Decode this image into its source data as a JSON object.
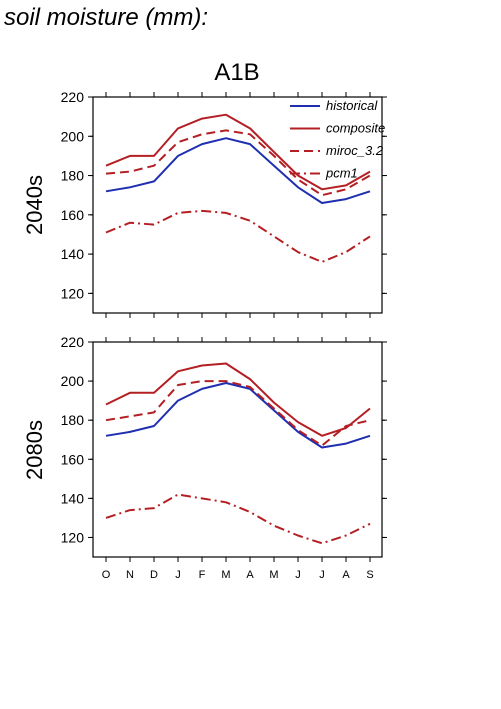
{
  "header": {
    "title": "soil moisture (mm):"
  },
  "scenario": "A1B",
  "colors": {
    "historical": "#1f2fb0",
    "model": "#b41f24",
    "axis": "#000000"
  },
  "chart_data": [
    {
      "type": "line",
      "panel_label": "2040s",
      "months": [
        "O",
        "N",
        "D",
        "J",
        "F",
        "M",
        "A",
        "M",
        "J",
        "J",
        "A",
        "S"
      ],
      "ylim": [
        110,
        220
      ],
      "yticks": [
        120,
        140,
        160,
        180,
        200,
        220
      ],
      "series": [
        {
          "name": "historical",
          "style": "solid",
          "values": [
            172,
            174,
            177,
            190,
            196,
            199,
            196,
            185,
            174,
            166,
            168,
            172
          ]
        },
        {
          "name": "composite",
          "style": "solid",
          "values": [
            185,
            190,
            190,
            204,
            209,
            211,
            204,
            192,
            180,
            173,
            175,
            182
          ]
        },
        {
          "name": "miroc_3.2",
          "style": "dash",
          "values": [
            181,
            182,
            185,
            197,
            201,
            203,
            201,
            190,
            178,
            170,
            173,
            180
          ]
        },
        {
          "name": "pcm1",
          "style": "dashdot",
          "values": [
            151,
            156,
            155,
            161,
            162,
            161,
            157,
            149,
            141,
            136,
            141,
            149
          ]
        }
      ],
      "legend": {
        "position": "top-right",
        "entries": [
          "historical",
          "composite",
          "miroc_3.2",
          "pcm1"
        ]
      }
    },
    {
      "type": "line",
      "panel_label": "2080s",
      "months": [
        "O",
        "N",
        "D",
        "J",
        "F",
        "M",
        "A",
        "M",
        "J",
        "J",
        "A",
        "S"
      ],
      "ylim": [
        110,
        220
      ],
      "yticks": [
        120,
        140,
        160,
        180,
        200,
        220
      ],
      "series": [
        {
          "name": "historical",
          "style": "solid",
          "values": [
            172,
            174,
            177,
            190,
            196,
            199,
            196,
            185,
            174,
            166,
            168,
            172
          ]
        },
        {
          "name": "composite",
          "style": "solid",
          "values": [
            188,
            194,
            194,
            205,
            208,
            209,
            201,
            189,
            179,
            172,
            176,
            186
          ]
        },
        {
          "name": "miroc_3.2",
          "style": "dash",
          "values": [
            180,
            182,
            184,
            198,
            200,
            200,
            197,
            186,
            175,
            167,
            177,
            180
          ]
        },
        {
          "name": "pcm1",
          "style": "dashdot",
          "values": [
            130,
            134,
            135,
            142,
            140,
            138,
            133,
            126,
            121,
            117,
            121,
            127
          ]
        }
      ]
    }
  ]
}
